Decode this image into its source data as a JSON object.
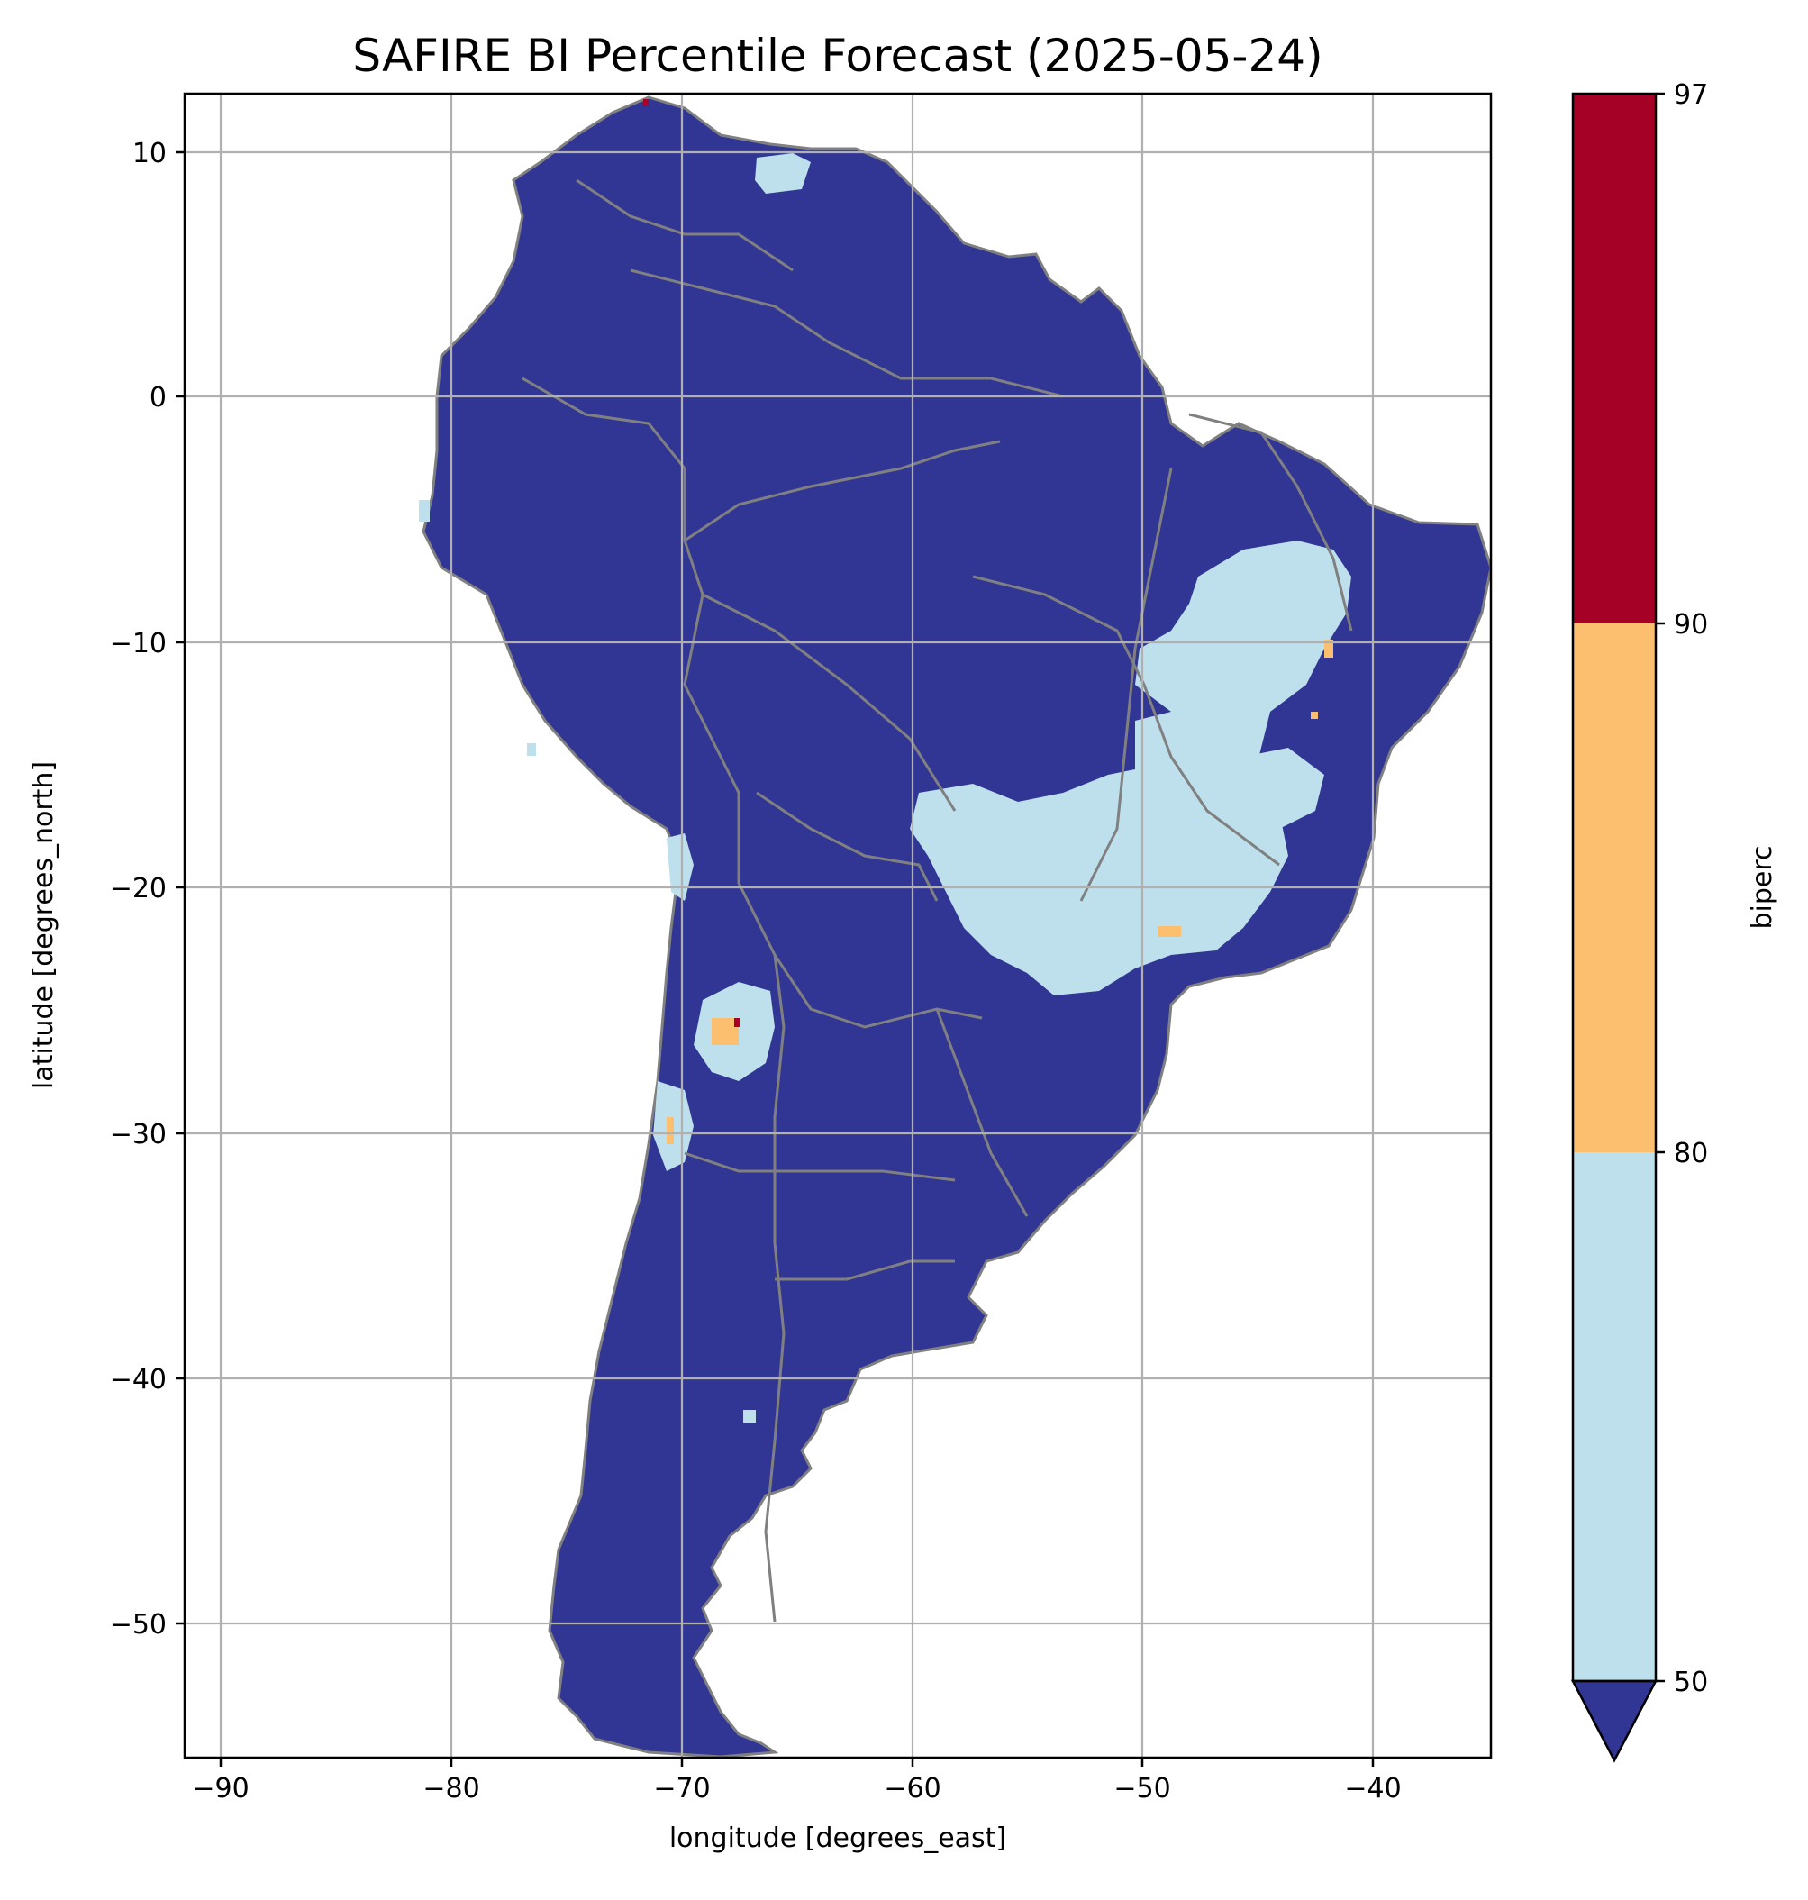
{
  "title": "SAFIRE BI Percentile Forecast (2025-05-24)",
  "map": {
    "x_label": "longitude [degrees_east]",
    "y_label": "latitude [degrees_north]",
    "x_ticks": [
      -90,
      -80,
      -70,
      -60,
      -50,
      -40
    ],
    "y_ticks": [
      10,
      0,
      -10,
      -20,
      -30,
      -40,
      -50
    ],
    "x_tick_labels": [
      "−90",
      "−80",
      "−70",
      "−60",
      "−50",
      "−40"
    ],
    "y_tick_labels": [
      "10",
      "0",
      "−10",
      "−20",
      "−30",
      "−40",
      "−50"
    ],
    "xlim": [
      -91.5,
      -35
    ],
    "ylim": [
      -55.9,
      12.4
    ],
    "grid": true,
    "land_color": "#313695",
    "border_color": "#808080"
  },
  "colorbar": {
    "label": "biperc",
    "levels": [
      50,
      80,
      90,
      97
    ],
    "level_labels": [
      "50",
      "80",
      "90",
      "97"
    ],
    "colors": [
      "#bde0ec",
      "#fcbf6f",
      "#a50026"
    ],
    "under_color": "#313695",
    "extend": "min"
  }
}
